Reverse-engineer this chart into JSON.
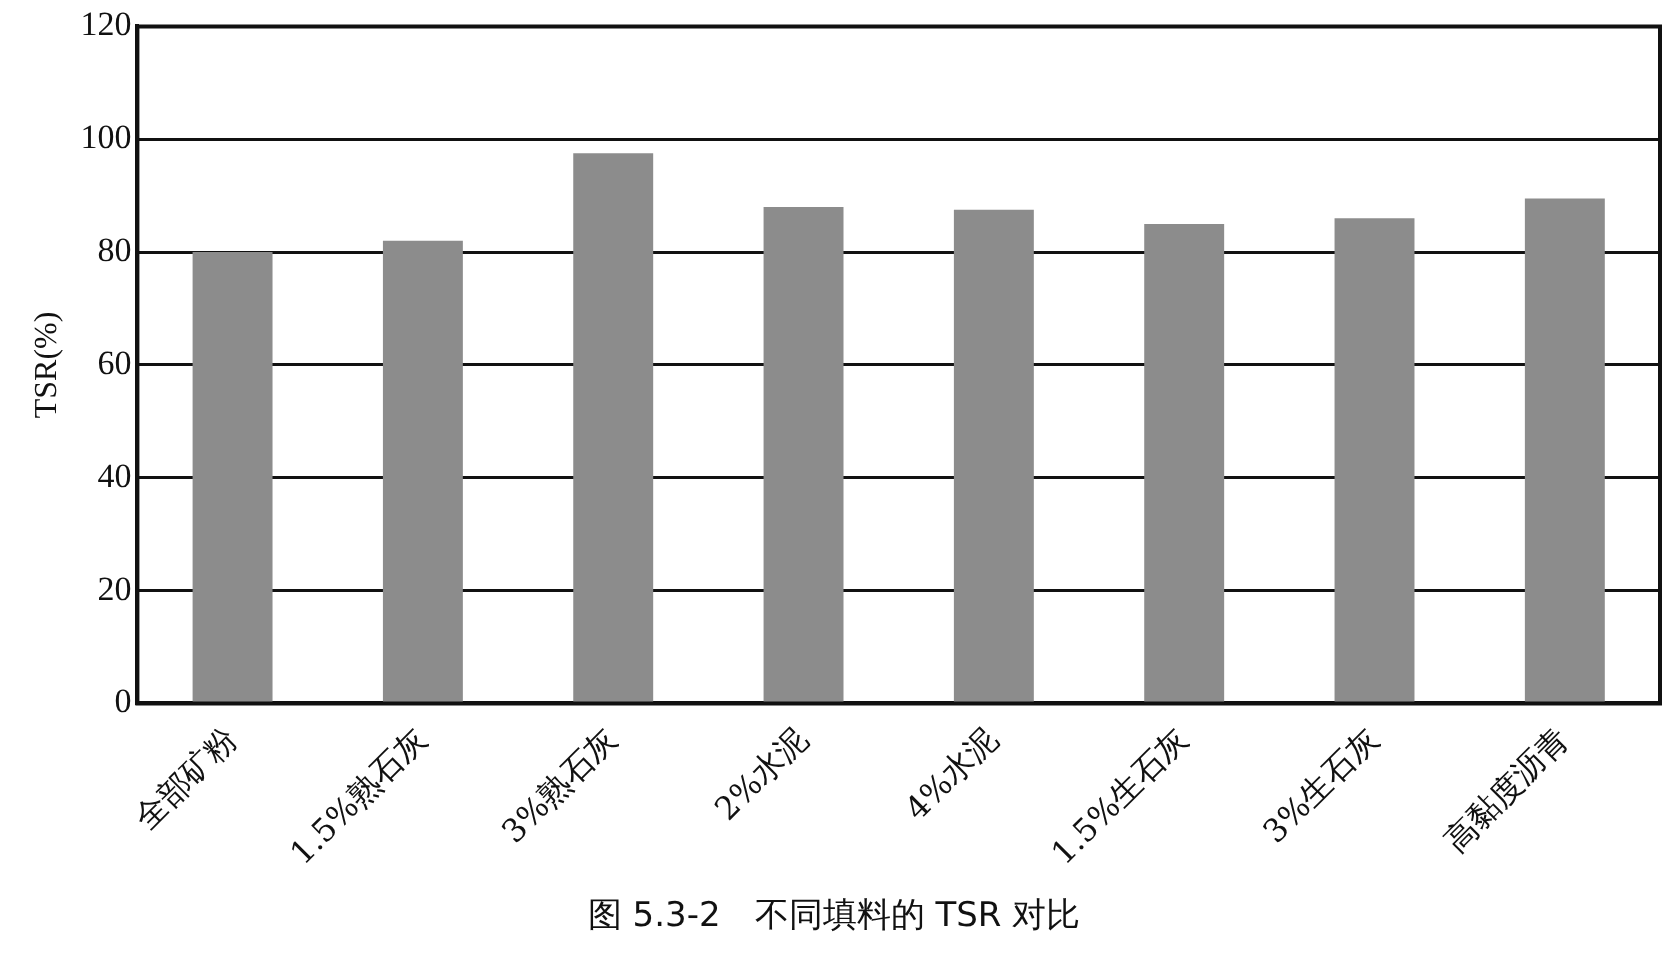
{
  "chart_data": {
    "type": "bar",
    "ylabel": "TSR(%)",
    "categories": [
      "全部矿粉",
      "1.5%熟石灰",
      "3%熟石灰",
      "2%水泥",
      "4%水泥",
      "1.5%生石灰",
      "3%生石灰",
      "高黏度沥青"
    ],
    "values": [
      80,
      82,
      97.5,
      88,
      87.5,
      85,
      86,
      89.5
    ],
    "color": "#8c8c8c",
    "ylim": [
      0,
      120
    ],
    "yticks": [
      0,
      20,
      40,
      60,
      80,
      100,
      120
    ],
    "grid": "y",
    "annotations": [
      "图 5.3-2　不同填料的 TSR 对比"
    ]
  }
}
